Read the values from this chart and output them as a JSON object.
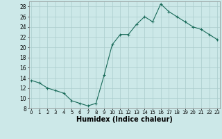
{
  "x": [
    0,
    1,
    2,
    3,
    4,
    5,
    6,
    7,
    8,
    9,
    10,
    11,
    12,
    13,
    14,
    15,
    16,
    17,
    18,
    19,
    20,
    21,
    22,
    23
  ],
  "y": [
    13.5,
    13.0,
    12.0,
    11.5,
    11.0,
    9.5,
    9.0,
    8.5,
    9.0,
    14.5,
    20.5,
    22.5,
    22.5,
    24.5,
    26.0,
    25.0,
    28.5,
    27.0,
    26.0,
    25.0,
    24.0,
    23.5,
    22.5,
    21.5
  ],
  "line_color": "#1a6b5a",
  "marker": "+",
  "marker_size": 3,
  "background_color": "#cce8e8",
  "grid_color": "#aacccc",
  "xlabel": "Humidex (Indice chaleur)",
  "ylim": [
    8,
    29
  ],
  "yticks": [
    8,
    10,
    12,
    14,
    16,
    18,
    20,
    22,
    24,
    26,
    28
  ],
  "xticks": [
    0,
    1,
    2,
    3,
    4,
    5,
    6,
    7,
    8,
    9,
    10,
    11,
    12,
    13,
    14,
    15,
    16,
    17,
    18,
    19,
    20,
    21,
    22,
    23
  ],
  "xlim": [
    -0.3,
    23.3
  ],
  "ylabel_fontsize": 6,
  "xlabel_fontsize": 7,
  "tick_fontsize": 5
}
